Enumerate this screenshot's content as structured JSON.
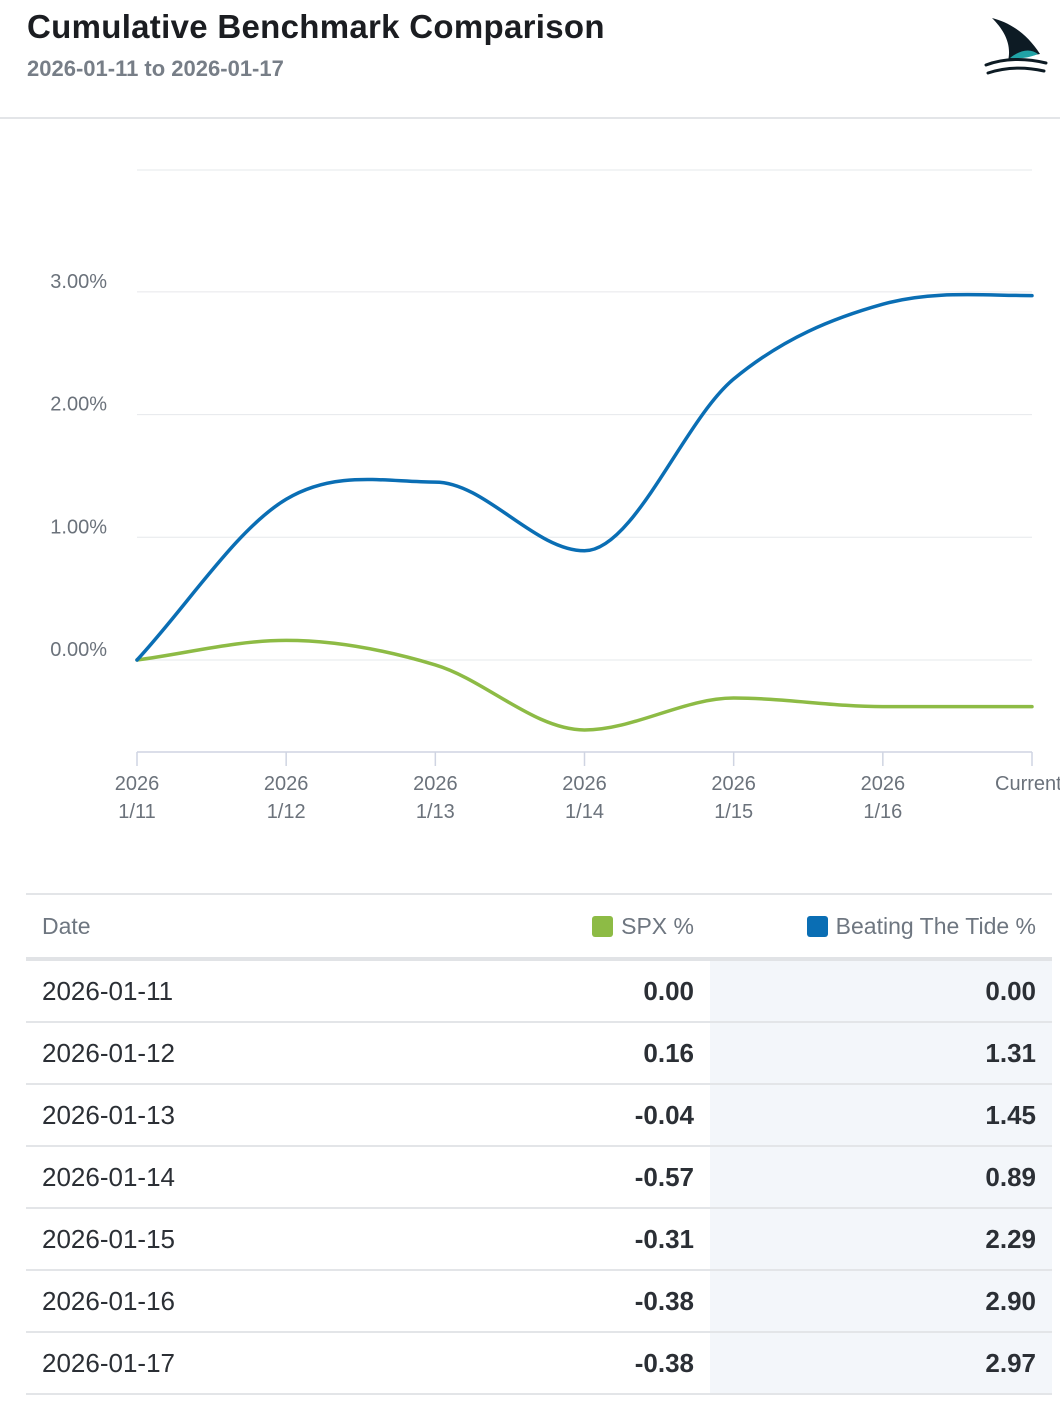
{
  "header": {
    "title": "Cumulative Benchmark Comparison",
    "subtitle": "2026-01-11 to 2026-01-17"
  },
  "colors": {
    "spx": "#8dbb45",
    "btt": "#0a6eb4",
    "logo_fin": "#0d1b24",
    "logo_accent": "#21a3a6"
  },
  "chart_data": {
    "type": "line",
    "title": "",
    "xlabel": "",
    "ylabel": "",
    "ylim": [
      -0.75,
      4.0
    ],
    "grid": true,
    "y_ticks": [
      {
        "value": 0,
        "label": "0.00%"
      },
      {
        "value": 1,
        "label": "1.00%"
      },
      {
        "value": 2,
        "label": "2.00%"
      },
      {
        "value": 3,
        "label": "3.00%"
      }
    ],
    "categories": [
      {
        "top": "2026",
        "bottom": "1/11"
      },
      {
        "top": "2026",
        "bottom": "1/12"
      },
      {
        "top": "2026",
        "bottom": "1/13"
      },
      {
        "top": "2026",
        "bottom": "1/14"
      },
      {
        "top": "2026",
        "bottom": "1/15"
      },
      {
        "top": "2026",
        "bottom": "1/16"
      },
      {
        "top": "Current",
        "bottom": ""
      }
    ],
    "series": [
      {
        "name": "SPX %",
        "color": "#8dbb45",
        "values": [
          0.0,
          0.16,
          -0.04,
          -0.57,
          -0.31,
          -0.38,
          -0.38
        ]
      },
      {
        "name": "Beating The Tide %",
        "color": "#0a6eb4",
        "values": [
          0.0,
          1.31,
          1.45,
          0.89,
          2.29,
          2.9,
          2.97
        ]
      }
    ]
  },
  "table": {
    "columns": {
      "date": "Date",
      "spx": "SPX %",
      "btt": "Beating The Tide %"
    },
    "rows": [
      {
        "date": "2026-01-11",
        "spx": "0.00",
        "btt": "0.00"
      },
      {
        "date": "2026-01-12",
        "spx": "0.16",
        "btt": "1.31"
      },
      {
        "date": "2026-01-13",
        "spx": "-0.04",
        "btt": "1.45"
      },
      {
        "date": "2026-01-14",
        "spx": "-0.57",
        "btt": "0.89"
      },
      {
        "date": "2026-01-15",
        "spx": "-0.31",
        "btt": "2.29"
      },
      {
        "date": "2026-01-16",
        "spx": "-0.38",
        "btt": "2.90"
      },
      {
        "date": "2026-01-17",
        "spx": "-0.38",
        "btt": "2.97"
      }
    ]
  }
}
